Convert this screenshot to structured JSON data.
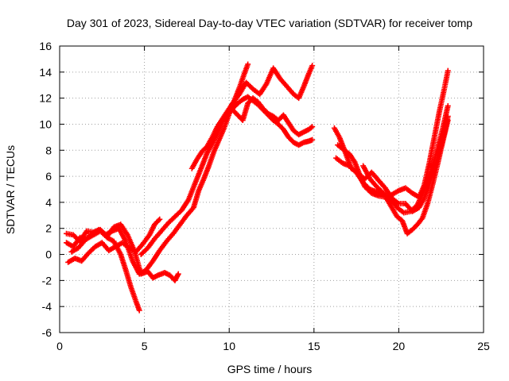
{
  "chart_data": {
    "type": "scatter",
    "title": "Day 301 of 2023, Sidereal Day-to-day VTEC variation (SDTVAR) for receiver tomp",
    "xlabel": "GPS time / hours",
    "ylabel": "SDTVAR / TECUs",
    "xlim": [
      0,
      25
    ],
    "ylim": [
      -6,
      16
    ],
    "xticks": [
      0,
      5,
      10,
      15,
      20,
      25
    ],
    "yticks": [
      -6,
      -4,
      -2,
      0,
      2,
      4,
      6,
      8,
      10,
      12,
      14,
      16
    ],
    "grid": true,
    "marker": "+",
    "color": "#ff0000",
    "series": [
      {
        "x": [
          0.4,
          0.8,
          1.2,
          1.6,
          2.0,
          2.4,
          2.8,
          3.2,
          3.6,
          3.9,
          4.2,
          4.5,
          4.7
        ],
        "y": [
          0.9,
          0.6,
          1.3,
          1.2,
          1.5,
          1.8,
          1.3,
          1.0,
          0.0,
          -1.2,
          -2.5,
          -3.6,
          -4.3
        ]
      },
      {
        "x": [
          0.4,
          0.8,
          1.2,
          1.6,
          2.0,
          2.4,
          2.8,
          3.2,
          3.6,
          4.0,
          4.4,
          4.8,
          5.2,
          5.5,
          5.8,
          6.2,
          6.5,
          6.8,
          7.0
        ],
        "y": [
          1.6,
          1.5,
          1.0,
          1.8,
          1.7,
          1.9,
          1.4,
          2.1,
          2.3,
          1.5,
          0.3,
          -1.5,
          -1.3,
          -1.8,
          -1.6,
          -1.4,
          -1.6,
          -2.0,
          -1.5
        ]
      },
      {
        "x": [
          0.5,
          0.9,
          1.3,
          1.7,
          2.1,
          2.5,
          2.9,
          3.3,
          3.7,
          4.1,
          4.5,
          4.9,
          5.3,
          5.6,
          5.9
        ],
        "y": [
          -0.6,
          -0.3,
          -0.5,
          0.1,
          0.6,
          0.9,
          0.3,
          0.6,
          0.9,
          0.5,
          0.2,
          0.8,
          1.5,
          2.3,
          2.7
        ]
      },
      {
        "x": [
          0.7,
          1.1,
          1.5,
          1.9,
          2.3,
          2.7,
          3.1,
          3.5,
          3.9,
          4.3,
          4.7,
          5.1,
          5.5,
          5.9,
          6.3,
          6.7,
          7.1,
          7.5,
          7.9,
          8.2,
          8.5,
          8.8,
          9.1,
          9.4,
          9.7,
          10.0,
          10.3,
          10.6,
          10.9,
          11.1
        ],
        "y": [
          0.2,
          0.5,
          1.1,
          1.6,
          1.9,
          1.5,
          1.8,
          2.0,
          1.0,
          -0.5,
          -1.5,
          -1.2,
          -0.5,
          0.3,
          1.0,
          1.6,
          2.3,
          3.0,
          3.6,
          4.9,
          5.8,
          6.8,
          7.9,
          8.8,
          9.7,
          10.8,
          11.8,
          12.8,
          13.9,
          14.6
        ]
      },
      {
        "x": [
          4.8,
          5.2,
          5.6,
          6.0,
          6.4,
          6.8,
          7.2,
          7.6,
          8.0,
          8.4,
          8.7,
          9.0,
          9.3,
          9.6,
          9.9,
          10.2,
          10.5,
          10.8,
          11.1,
          11.4,
          11.7,
          12.0,
          12.3,
          12.6,
          12.9,
          13.2,
          13.5,
          13.8,
          14.1,
          14.4,
          14.7,
          14.9
        ],
        "y": [
          0.0,
          0.5,
          1.2,
          1.8,
          2.4,
          2.9,
          3.4,
          4.2,
          5.5,
          6.8,
          7.8,
          8.5,
          9.3,
          10.2,
          10.8,
          11.2,
          11.6,
          11.9,
          12.1,
          11.8,
          11.5,
          11.1,
          10.7,
          10.3,
          10.0,
          9.6,
          9.0,
          8.6,
          8.4,
          8.6,
          8.7,
          8.8
        ]
      },
      {
        "x": [
          7.8,
          8.1,
          8.4,
          8.7,
          9.0,
          9.3,
          9.6,
          9.9,
          10.2,
          10.5,
          10.8,
          11.1,
          11.4,
          11.7,
          12.0,
          12.3,
          12.6,
          12.9,
          13.2,
          13.5,
          13.8,
          14.1,
          14.4,
          14.7,
          14.9
        ],
        "y": [
          6.6,
          7.3,
          7.9,
          8.3,
          9.0,
          9.8,
          10.3,
          10.9,
          11.1,
          10.7,
          10.3,
          11.6,
          12.0,
          11.7,
          11.2,
          10.8,
          10.6,
          10.3,
          10.7,
          10.1,
          9.5,
          9.2,
          9.4,
          9.6,
          9.8
        ]
      },
      {
        "x": [
          9.4,
          9.8,
          10.2,
          10.6,
          11.0,
          11.4,
          11.8,
          12.2,
          12.6,
          13.0,
          13.4,
          13.8,
          14.1,
          14.4,
          14.7,
          14.9
        ],
        "y": [
          10.0,
          10.8,
          11.6,
          12.3,
          13.2,
          12.7,
          12.3,
          13.1,
          14.3,
          13.5,
          12.9,
          12.3,
          12.0,
          12.9,
          13.9,
          14.5
        ]
      },
      {
        "x": [
          16.2,
          16.5,
          16.8,
          17.1,
          17.4,
          17.7,
          18.0,
          18.4,
          18.8,
          19.2,
          19.6,
          20.0,
          20.4,
          20.8,
          21.2,
          21.5,
          21.8,
          22.1,
          22.4,
          22.7,
          22.9
        ],
        "y": [
          9.7,
          9.0,
          8.0,
          7.7,
          7.1,
          6.1,
          5.2,
          4.7,
          4.5,
          4.4,
          4.6,
          4.9,
          5.1,
          4.7,
          4.4,
          5.3,
          7.0,
          9.0,
          11.0,
          12.8,
          14.1
        ]
      },
      {
        "x": [
          16.3,
          16.7,
          17.1,
          17.5,
          17.9,
          18.3,
          18.7,
          19.1,
          19.5,
          19.9,
          20.3,
          20.7,
          21.1,
          21.5,
          21.9,
          22.3,
          22.6,
          22.9
        ],
        "y": [
          7.4,
          7.0,
          6.8,
          6.3,
          5.5,
          5.0,
          4.8,
          4.6,
          4.3,
          3.6,
          3.2,
          3.3,
          3.8,
          5.0,
          6.4,
          8.2,
          9.7,
          11.4
        ]
      },
      {
        "x": [
          16.4,
          16.8,
          17.2,
          17.6,
          18.0,
          18.4,
          18.8,
          19.2,
          19.6,
          20.0,
          20.4,
          20.8,
          21.2,
          21.5,
          21.8,
          22.1,
          22.4,
          22.7,
          22.9
        ],
        "y": [
          8.4,
          8.0,
          6.6,
          6.2,
          5.8,
          6.3,
          5.7,
          5.1,
          4.3,
          3.9,
          3.9,
          3.3,
          3.6,
          4.3,
          5.4,
          6.6,
          7.9,
          9.4,
          10.6
        ]
      },
      {
        "x": [
          17.9,
          18.3,
          18.7,
          19.1,
          19.5,
          19.9,
          20.2,
          20.5,
          20.8,
          21.1,
          21.4,
          21.7,
          22.0,
          22.3,
          22.6,
          22.9
        ],
        "y": [
          6.8,
          5.8,
          5.2,
          4.7,
          3.8,
          2.9,
          2.6,
          1.6,
          1.9,
          2.3,
          2.8,
          3.9,
          5.4,
          7.0,
          8.7,
          10.3
        ]
      }
    ]
  }
}
